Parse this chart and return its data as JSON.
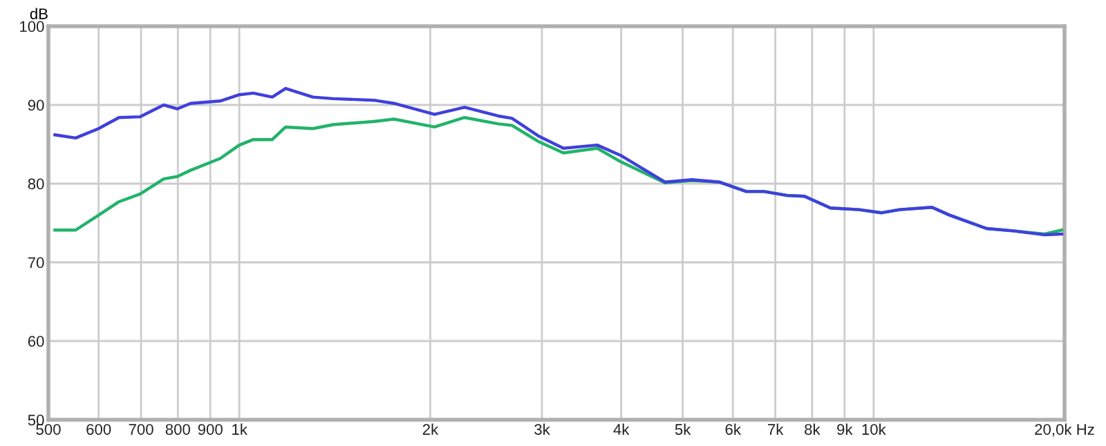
{
  "chart_data": {
    "type": "line",
    "ylabel": "dB",
    "log": "x",
    "grid": true,
    "legend": false,
    "marker": "none",
    "line_style": "solid",
    "xlim": [
      500,
      20000
    ],
    "ylim": [
      50,
      100
    ],
    "xticks": [
      500,
      600,
      700,
      800,
      900,
      {
        "value": 1000,
        "label": "1k"
      },
      {
        "value": 2000,
        "label": "2k"
      },
      {
        "value": 3000,
        "label": "3k"
      },
      {
        "value": 4000,
        "label": "4k"
      },
      {
        "value": 5000,
        "label": "5k"
      },
      {
        "value": 6000,
        "label": "6k"
      },
      {
        "value": 7000,
        "label": "7k"
      },
      {
        "value": 8000,
        "label": "8k"
      },
      {
        "value": 9000,
        "label": "9k"
      },
      {
        "value": 10000,
        "label": "10k"
      },
      {
        "value": 20000,
        "label": "20,0k Hz"
      }
    ],
    "yticks": [
      50,
      60,
      70,
      80,
      90,
      100
    ],
    "series": [
      {
        "color": "#22b36a",
        "x": [
          512,
          552,
          600,
          646,
          698,
          760,
          798,
          838,
          933,
          1000,
          1052,
          1127,
          1183,
          1306,
          1406,
          1630,
          1753,
          2031,
          2265,
          2560,
          2691,
          2970,
          3244,
          3666,
          3990,
          4690,
          5175,
          5710,
          6300,
          6720,
          7310,
          7780,
          8550,
          9480,
          10300,
          11000,
          12360,
          13180,
          15070,
          16600,
          18600,
          19800
        ],
        "values": [
          74.1,
          74.1,
          76,
          77.7,
          78.7,
          80.6,
          80.9,
          81.7,
          83.2,
          84.9,
          85.6,
          85.6,
          87.2,
          87,
          87.5,
          87.9,
          88.2,
          87.2,
          88.4,
          87.6,
          87.4,
          85.3,
          83.9,
          84.5,
          82.8,
          80.1,
          80.4,
          80.2,
          79,
          79,
          78.5,
          78.4,
          76.9,
          76.7,
          76.3,
          76.7,
          77,
          76,
          74.3,
          74,
          73.6,
          74.1
        ]
      },
      {
        "color": "#4040dd",
        "x": [
          512,
          552,
          600,
          646,
          698,
          760,
          798,
          838,
          933,
          1000,
          1052,
          1127,
          1183,
          1306,
          1406,
          1630,
          1753,
          2031,
          2265,
          2560,
          2691,
          2970,
          3244,
          3666,
          3990,
          4690,
          5175,
          5710,
          6300,
          6720,
          7310,
          7780,
          8550,
          9480,
          10300,
          11000,
          12360,
          13180,
          15070,
          16600,
          18600,
          19800
        ],
        "values": [
          86.2,
          85.8,
          87,
          88.4,
          88.5,
          90,
          89.5,
          90.2,
          90.5,
          91.3,
          91.5,
          91,
          92.1,
          91,
          90.8,
          90.6,
          90.2,
          88.8,
          89.7,
          88.6,
          88.3,
          86,
          84.5,
          84.9,
          83.6,
          80.2,
          80.5,
          80.2,
          79,
          79,
          78.5,
          78.4,
          76.9,
          76.7,
          76.3,
          76.7,
          77,
          76,
          74.3,
          74,
          73.5,
          73.6
        ]
      }
    ]
  }
}
